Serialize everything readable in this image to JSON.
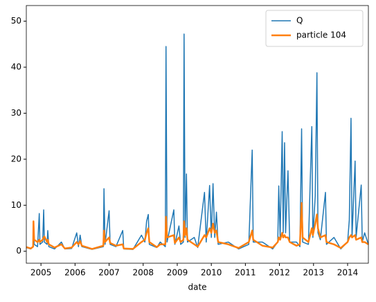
{
  "chart_data": {
    "type": "line",
    "x_label": "date",
    "x": [
      2004.57,
      2004.7,
      2004.77,
      2004.78,
      2004.8,
      2004.9,
      2004.95,
      2004.97,
      2005.05,
      2005.08,
      2005.1,
      2005.18,
      2005.2,
      2005.23,
      2005.4,
      2005.6,
      2005.7,
      2005.9,
      2006.05,
      2006.1,
      2006.15,
      2006.2,
      2006.5,
      2006.83,
      2006.85,
      2006.88,
      2007.0,
      2007.03,
      2007.2,
      2007.4,
      2007.43,
      2007.7,
      2007.95,
      2008.05,
      2008.1,
      2008.15,
      2008.18,
      2008.4,
      2008.5,
      2008.65,
      2008.67,
      2008.7,
      2008.9,
      2008.93,
      2009.05,
      2009.1,
      2009.18,
      2009.2,
      2009.23,
      2009.27,
      2009.3,
      2009.5,
      2009.6,
      2009.8,
      2009.85,
      2009.95,
      2010.0,
      2010.05,
      2010.1,
      2010.15,
      2010.2,
      2010.5,
      2010.8,
      2011.1,
      2011.2,
      2011.23,
      2011.5,
      2011.8,
      2011.95,
      2011.98,
      2012.02,
      2012.08,
      2012.11,
      2012.15,
      2012.18,
      2012.25,
      2012.3,
      2012.5,
      2012.6,
      2012.65,
      2012.68,
      2012.85,
      2012.95,
      2012.98,
      2013.05,
      2013.1,
      2013.13,
      2013.2,
      2013.35,
      2013.38,
      2013.6,
      2013.8,
      2014.0,
      2014.05,
      2014.1,
      2014.13,
      2014.22,
      2014.25,
      2014.4,
      2014.43,
      2014.5,
      2014.61
    ],
    "series": [
      {
        "name": "Q",
        "color": "#1f77b4",
        "width": 1.5,
        "values": [
          0.8,
          0.5,
          1,
          6.5,
          1.5,
          1,
          8.2,
          1.5,
          2,
          9,
          2,
          1.5,
          4.5,
          1,
          0.5,
          2,
          0.5,
          0.6,
          4,
          1,
          3.5,
          1,
          0.4,
          1,
          13.6,
          1.5,
          8.8,
          1.5,
          1,
          4.5,
          0.5,
          0.4,
          3.5,
          2,
          6.5,
          8,
          1.5,
          0.8,
          2,
          1,
          44.5,
          2,
          9,
          1.5,
          5.5,
          1.5,
          2,
          47.2,
          3,
          16.8,
          2,
          3,
          0.8,
          12.8,
          2,
          14.3,
          3,
          14.7,
          3,
          8.5,
          1.5,
          2,
          0.5,
          1.5,
          22,
          2,
          2,
          0.5,
          2,
          14.2,
          3,
          26,
          4,
          23.6,
          4,
          17.5,
          2,
          2,
          1,
          26.6,
          2,
          1.5,
          27.1,
          3,
          12,
          38.8,
          4,
          2.5,
          12.8,
          1.5,
          3,
          0.5,
          2,
          6.8,
          28.9,
          3,
          19.6,
          3,
          14.4,
          2,
          4,
          1.5
        ]
      },
      {
        "name": "particle 104",
        "color": "#ff7f0e",
        "width": 2.5,
        "values": [
          0.9,
          0.6,
          1,
          6.5,
          2.5,
          2,
          2.5,
          2,
          2.5,
          3,
          3.2,
          2,
          2.5,
          1.5,
          0.8,
          1.5,
          0.6,
          0.8,
          2,
          1.5,
          2.2,
          1.2,
          0.5,
          1.2,
          4.5,
          2,
          3,
          1.8,
          1.2,
          1.5,
          0.6,
          0.5,
          2,
          2.5,
          4,
          5,
          2,
          0.9,
          1.5,
          1.5,
          7.5,
          3,
          3.5,
          1.8,
          3,
          2,
          2.5,
          6.5,
          3.5,
          5,
          2.5,
          1.5,
          1,
          3.5,
          3,
          5,
          4,
          6,
          4,
          4.5,
          2,
          1.5,
          0.7,
          2,
          4.5,
          2.5,
          1.2,
          0.8,
          2,
          3,
          2.5,
          4,
          3,
          3.5,
          3,
          3,
          2,
          1.2,
          1.5,
          10.5,
          3,
          2,
          5,
          3.5,
          6,
          8,
          5,
          3,
          3.5,
          2,
          1.5,
          0.7,
          2,
          3,
          3.5,
          3,
          3.5,
          2.5,
          3,
          2,
          2,
          1.5
        ]
      }
    ],
    "xlim": [
      2004.57,
      2014.61
    ],
    "xticks": [
      2005,
      2006,
      2007,
      2008,
      2009,
      2010,
      2011,
      2012,
      2013,
      2014
    ],
    "ylim": [
      -2.6,
      53.4
    ],
    "yticks": [
      0,
      10,
      20,
      30,
      40,
      50
    ],
    "legend": "upper right"
  }
}
